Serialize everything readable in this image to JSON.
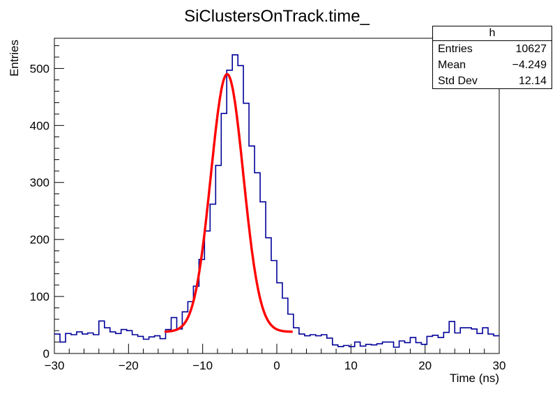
{
  "title": "SiClustersOnTrack.time_",
  "stats": {
    "name": "h",
    "rows": [
      {
        "label": "Entries",
        "value": "10627"
      },
      {
        "label": "Mean",
        "value": "−4.249"
      },
      {
        "label": "Std Dev",
        "value": "12.14"
      }
    ]
  },
  "axes": {
    "x": {
      "title": "Time (ns)",
      "min": -30,
      "max": 30,
      "tick_values": [
        -30,
        -20,
        -10,
        0,
        10,
        20,
        30
      ],
      "tick_labels": [
        "−30",
        "−20",
        "−10",
        "0",
        "10",
        "20",
        "30"
      ],
      "minor_step": 2
    },
    "y": {
      "title": "Entries",
      "min": 0,
      "max": 553,
      "tick_values": [
        0,
        100,
        200,
        300,
        400,
        500
      ],
      "tick_labels": [
        "0",
        "100",
        "200",
        "300",
        "400",
        "500"
      ],
      "minor_step": 20
    }
  },
  "chart_data": {
    "type": "bar",
    "subtype": "step-histogram",
    "title": "SiClustersOnTrack.time_",
    "xlabel": "Time (ns)",
    "ylabel": "Entries",
    "xlim": [
      -30,
      30
    ],
    "ylim": [
      0,
      553
    ],
    "grid": false,
    "bin_start": -30,
    "bin_width": 0.75,
    "counts": [
      34,
      20,
      35,
      33,
      38,
      34,
      36,
      33,
      57,
      45,
      38,
      35,
      42,
      40,
      33,
      30,
      25,
      29,
      31,
      26,
      42,
      63,
      43,
      73,
      91,
      118,
      165,
      215,
      262,
      330,
      421,
      497,
      524,
      505,
      439,
      364,
      317,
      266,
      203,
      163,
      124,
      97,
      69,
      45,
      34,
      31,
      33,
      31,
      33,
      27,
      15,
      12,
      14,
      12,
      20,
      13,
      16,
      15,
      17,
      20,
      20,
      11,
      22,
      19,
      28,
      19,
      16,
      30,
      32,
      28,
      37,
      56,
      36,
      45,
      45,
      43,
      35,
      45,
      34,
      31
    ],
    "histogram_color": "#000099",
    "fit": {
      "model": "gaussian+constant",
      "amplitude": 452,
      "mean": -6.7,
      "sigma": 2.2,
      "constant": 38,
      "range": [
        -15.0,
        2.0
      ],
      "color": "#ff0000"
    }
  }
}
